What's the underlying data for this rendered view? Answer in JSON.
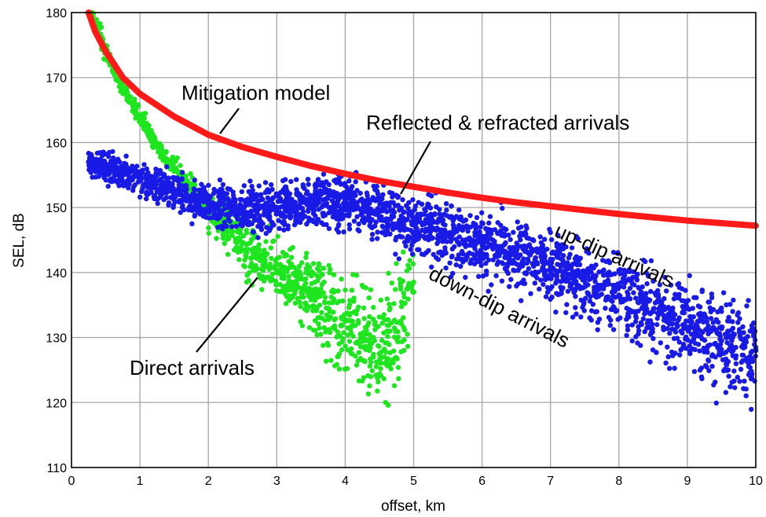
{
  "chart_data": {
    "type": "scatter",
    "title": "",
    "xlabel": "offset, km",
    "ylabel": "SEL, dB",
    "xlim": [
      0,
      10
    ],
    "ylim": [
      110,
      180
    ],
    "xticks": [
      "0",
      "1",
      "2",
      "3",
      "4",
      "5",
      "6",
      "7",
      "8",
      "9",
      "10"
    ],
    "yticks": [
      "110",
      "120",
      "130",
      "140",
      "150",
      "160",
      "170",
      "180"
    ],
    "grid": true,
    "series": [
      {
        "name": "Mitigation model",
        "kind": "line",
        "color": "#ff1a1a",
        "x": [
          0.25,
          0.35,
          0.5,
          0.75,
          1.0,
          1.5,
          2.0,
          2.5,
          3.0,
          3.5,
          4.0,
          4.5,
          5.0,
          5.5,
          6.0,
          6.5,
          7.0,
          7.5,
          8.0,
          8.5,
          9.0,
          9.5,
          10.0
        ],
        "y": [
          180.0,
          177.0,
          174.0,
          170.0,
          167.5,
          164.0,
          161.2,
          159.3,
          157.8,
          156.4,
          155.2,
          154.1,
          153.2,
          152.3,
          151.5,
          150.8,
          150.2,
          149.6,
          149.0,
          148.5,
          148.0,
          147.6,
          147.2
        ]
      },
      {
        "name": "Direct arrivals",
        "kind": "scatter",
        "color": "#1ee61e",
        "x": [
          0.3,
          0.5,
          0.75,
          1.0,
          1.25,
          1.5,
          1.75,
          2.0,
          2.25,
          2.5,
          2.75,
          3.0,
          3.25,
          3.5,
          3.75,
          4.0,
          4.25,
          4.5,
          4.75,
          5.0
        ],
        "y": [
          180.0,
          174.0,
          168.5,
          164.0,
          159.5,
          156.0,
          153.0,
          150.0,
          147.0,
          144.5,
          142.0,
          140.0,
          138.5,
          136.5,
          134.5,
          132.5,
          130.0,
          127.5,
          131.0,
          137.0
        ]
      },
      {
        "name": "Reflected & refracted arrivals",
        "kind": "scatter",
        "color": "#1a1ae6",
        "x": [
          0.25,
          0.5,
          1.0,
          1.5,
          2.0,
          2.5,
          3.0,
          3.5,
          4.0,
          4.5,
          5.0,
          5.5,
          6.0,
          6.5,
          7.0,
          7.5,
          8.0,
          8.5,
          9.0,
          9.5,
          10.0
        ],
        "y": [
          157.0,
          156.0,
          154.5,
          152.5,
          150.5,
          149.5,
          150.0,
          150.5,
          151.0,
          149.5,
          147.5,
          146.0,
          144.5,
          143.0,
          141.0,
          139.0,
          136.5,
          134.0,
          131.5,
          129.5,
          128.0
        ]
      }
    ],
    "annotations": [
      {
        "text": "Mitigation model"
      },
      {
        "text": "Reflected & refracted arrivals"
      },
      {
        "text": "up-dip arrivals"
      },
      {
        "text": "down-dip arrivals"
      },
      {
        "text": "Direct arrivals"
      }
    ]
  }
}
